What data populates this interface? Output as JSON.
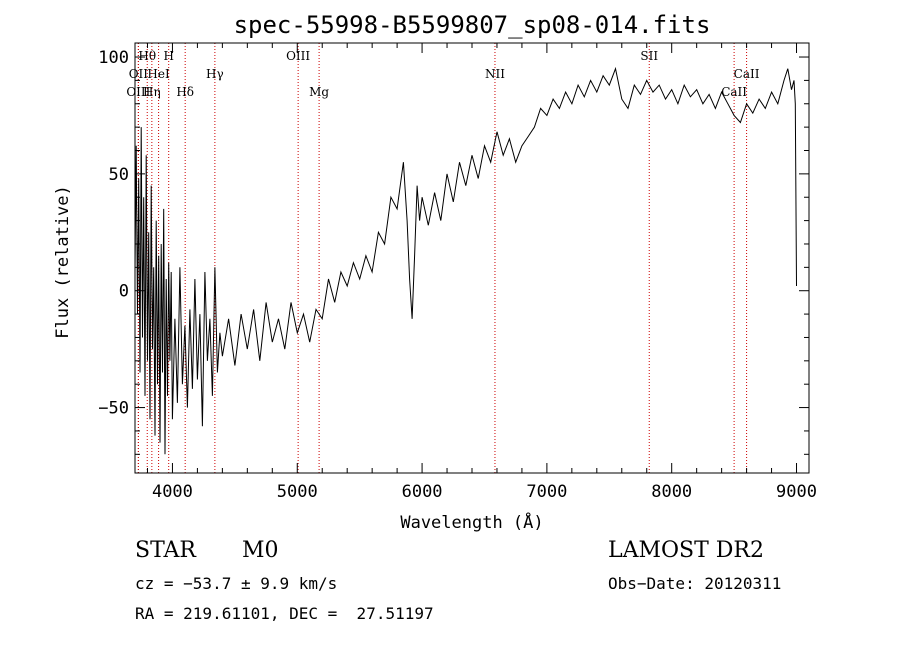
{
  "chart_data": {
    "type": "line",
    "title": "spec-55998-B5599807_sp08-014.fits",
    "xlabel": "Wavelength (Å)",
    "ylabel": "Flux (relative)",
    "xlim": [
      3700,
      9100
    ],
    "ylim": [
      -78,
      106
    ],
    "x_ticks": [
      4000,
      5000,
      6000,
      7000,
      8000,
      9000
    ],
    "y_ticks": [
      -50,
      0,
      50,
      100
    ],
    "grid": false,
    "series": [
      {
        "color": "#000000",
        "points": [
          [
            3700,
            8
          ],
          [
            3710,
            62
          ],
          [
            3720,
            -10
          ],
          [
            3730,
            48
          ],
          [
            3740,
            -35
          ],
          [
            3750,
            70
          ],
          [
            3760,
            -20
          ],
          [
            3770,
            40
          ],
          [
            3780,
            -45
          ],
          [
            3790,
            58
          ],
          [
            3800,
            -30
          ],
          [
            3810,
            25
          ],
          [
            3820,
            -55
          ],
          [
            3830,
            45
          ],
          [
            3840,
            -25
          ],
          [
            3850,
            10
          ],
          [
            3860,
            -62
          ],
          [
            3870,
            30
          ],
          [
            3880,
            -40
          ],
          [
            3890,
            15
          ],
          [
            3900,
            -65
          ],
          [
            3910,
            20
          ],
          [
            3920,
            -35
          ],
          [
            3930,
            35
          ],
          [
            3940,
            -70
          ],
          [
            3950,
            5
          ],
          [
            3960,
            -45
          ],
          [
            3970,
            12
          ],
          [
            3980,
            -30
          ],
          [
            3990,
            8
          ],
          [
            4000,
            -55
          ],
          [
            4020,
            -12
          ],
          [
            4040,
            -48
          ],
          [
            4060,
            10
          ],
          [
            4080,
            -40
          ],
          [
            4100,
            -15
          ],
          [
            4120,
            -50
          ],
          [
            4140,
            -8
          ],
          [
            4160,
            -42
          ],
          [
            4180,
            5
          ],
          [
            4200,
            -38
          ],
          [
            4220,
            -10
          ],
          [
            4240,
            -58
          ],
          [
            4260,
            8
          ],
          [
            4280,
            -30
          ],
          [
            4300,
            -12
          ],
          [
            4320,
            -45
          ],
          [
            4340,
            10
          ],
          [
            4360,
            -35
          ],
          [
            4380,
            -18
          ],
          [
            4400,
            -28
          ],
          [
            4450,
            -12
          ],
          [
            4500,
            -32
          ],
          [
            4550,
            -10
          ],
          [
            4600,
            -25
          ],
          [
            4650,
            -8
          ],
          [
            4700,
            -30
          ],
          [
            4750,
            -5
          ],
          [
            4800,
            -22
          ],
          [
            4850,
            -12
          ],
          [
            4900,
            -25
          ],
          [
            4950,
            -5
          ],
          [
            5000,
            -18
          ],
          [
            5050,
            -10
          ],
          [
            5100,
            -22
          ],
          [
            5150,
            -8
          ],
          [
            5200,
            -12
          ],
          [
            5250,
            5
          ],
          [
            5300,
            -5
          ],
          [
            5350,
            8
          ],
          [
            5400,
            2
          ],
          [
            5450,
            12
          ],
          [
            5500,
            5
          ],
          [
            5550,
            15
          ],
          [
            5600,
            8
          ],
          [
            5650,
            25
          ],
          [
            5700,
            20
          ],
          [
            5750,
            40
          ],
          [
            5800,
            35
          ],
          [
            5850,
            55
          ],
          [
            5880,
            30
          ],
          [
            5900,
            5
          ],
          [
            5920,
            -12
          ],
          [
            5940,
            15
          ],
          [
            5960,
            45
          ],
          [
            5980,
            30
          ],
          [
            6000,
            40
          ],
          [
            6050,
            28
          ],
          [
            6100,
            42
          ],
          [
            6150,
            30
          ],
          [
            6200,
            50
          ],
          [
            6250,
            38
          ],
          [
            6300,
            55
          ],
          [
            6350,
            45
          ],
          [
            6400,
            58
          ],
          [
            6450,
            48
          ],
          [
            6500,
            62
          ],
          [
            6550,
            55
          ],
          [
            6600,
            68
          ],
          [
            6650,
            58
          ],
          [
            6700,
            65
          ],
          [
            6750,
            55
          ],
          [
            6800,
            62
          ],
          [
            6850,
            66
          ],
          [
            6900,
            70
          ],
          [
            6950,
            78
          ],
          [
            7000,
            75
          ],
          [
            7050,
            82
          ],
          [
            7100,
            78
          ],
          [
            7150,
            85
          ],
          [
            7200,
            80
          ],
          [
            7250,
            88
          ],
          [
            7300,
            83
          ],
          [
            7350,
            90
          ],
          [
            7400,
            85
          ],
          [
            7450,
            92
          ],
          [
            7500,
            88
          ],
          [
            7550,
            95
          ],
          [
            7600,
            82
          ],
          [
            7650,
            78
          ],
          [
            7700,
            88
          ],
          [
            7750,
            84
          ],
          [
            7800,
            90
          ],
          [
            7850,
            85
          ],
          [
            7900,
            88
          ],
          [
            7950,
            82
          ],
          [
            8000,
            86
          ],
          [
            8050,
            80
          ],
          [
            8100,
            88
          ],
          [
            8150,
            83
          ],
          [
            8200,
            86
          ],
          [
            8250,
            80
          ],
          [
            8300,
            84
          ],
          [
            8350,
            78
          ],
          [
            8400,
            85
          ],
          [
            8450,
            80
          ],
          [
            8500,
            75
          ],
          [
            8550,
            72
          ],
          [
            8600,
            80
          ],
          [
            8650,
            76
          ],
          [
            8700,
            82
          ],
          [
            8750,
            78
          ],
          [
            8800,
            85
          ],
          [
            8850,
            80
          ],
          [
            8900,
            90
          ],
          [
            8930,
            95
          ],
          [
            8960,
            86
          ],
          [
            8980,
            90
          ],
          [
            8990,
            80
          ],
          [
            9000,
            2
          ]
        ]
      }
    ],
    "lines": [
      {
        "label": "Hθ",
        "wavelength": 3798,
        "row": 1
      },
      {
        "label": "H",
        "wavelength": 3970,
        "row": 1
      },
      {
        "label": "OII",
        "wavelength": 3727,
        "row": 2
      },
      {
        "label": "HeI",
        "wavelength": 3889,
        "row": 2
      },
      {
        "label": "Hγ",
        "wavelength": 4340,
        "row": 2
      },
      {
        "label": "OIII",
        "wavelength": 3727,
        "row": 3
      },
      {
        "label": "Hη",
        "wavelength": 3835,
        "row": 3
      },
      {
        "label": "Hδ",
        "wavelength": 4102,
        "row": 3
      },
      {
        "label": "OIII",
        "wavelength": 5007,
        "row": 1
      },
      {
        "label": "Mg",
        "wavelength": 5175,
        "row": 3
      },
      {
        "label": "NII",
        "wavelength": 6584,
        "row": 2
      },
      {
        "label": "SII",
        "wavelength": 7820,
        "row": 1
      },
      {
        "label": "CaII",
        "wavelength": 8600,
        "row": 2
      },
      {
        "label": "CaII",
        "wavelength": 8500,
        "row": 3
      }
    ]
  },
  "info": {
    "object_type": "STAR",
    "subclass": "M0",
    "survey": "LAMOST DR2",
    "cz": "cz = −53.7 ± 9.9 km/s",
    "obs_date": "Obs−Date: 20120311",
    "coords": "RA = 219.61101, DEC =  27.51197"
  }
}
